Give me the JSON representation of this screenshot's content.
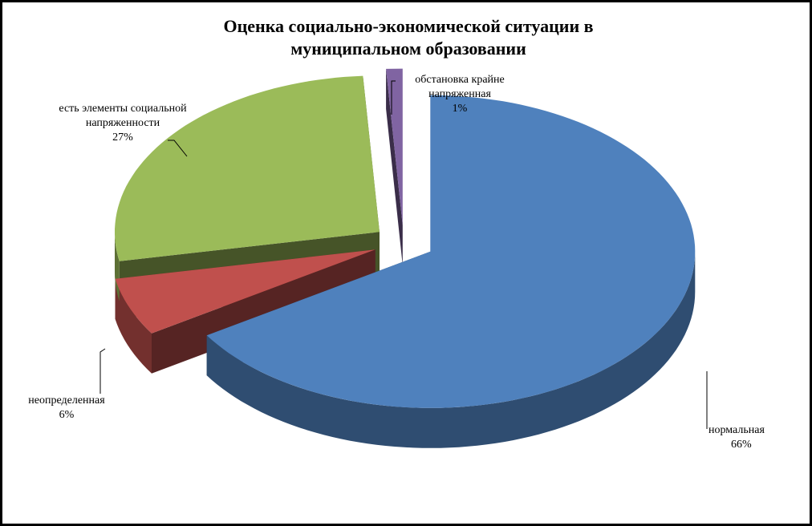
{
  "chart_data": {
    "type": "pie3d",
    "title": "Оценка социально-экономической ситуации в муниципальном образовании",
    "categories": [
      "нормальная",
      "неопределенная",
      "есть элементы социальной напряженности",
      "обстановка крайне напряженная"
    ],
    "values": [
      66,
      6,
      27,
      1
    ],
    "value_labels": [
      "66%",
      "6%",
      "27%",
      "1%"
    ],
    "colors": [
      "#4f81bd",
      "#c0504d",
      "#9bbb59",
      "#8064a2"
    ]
  }
}
